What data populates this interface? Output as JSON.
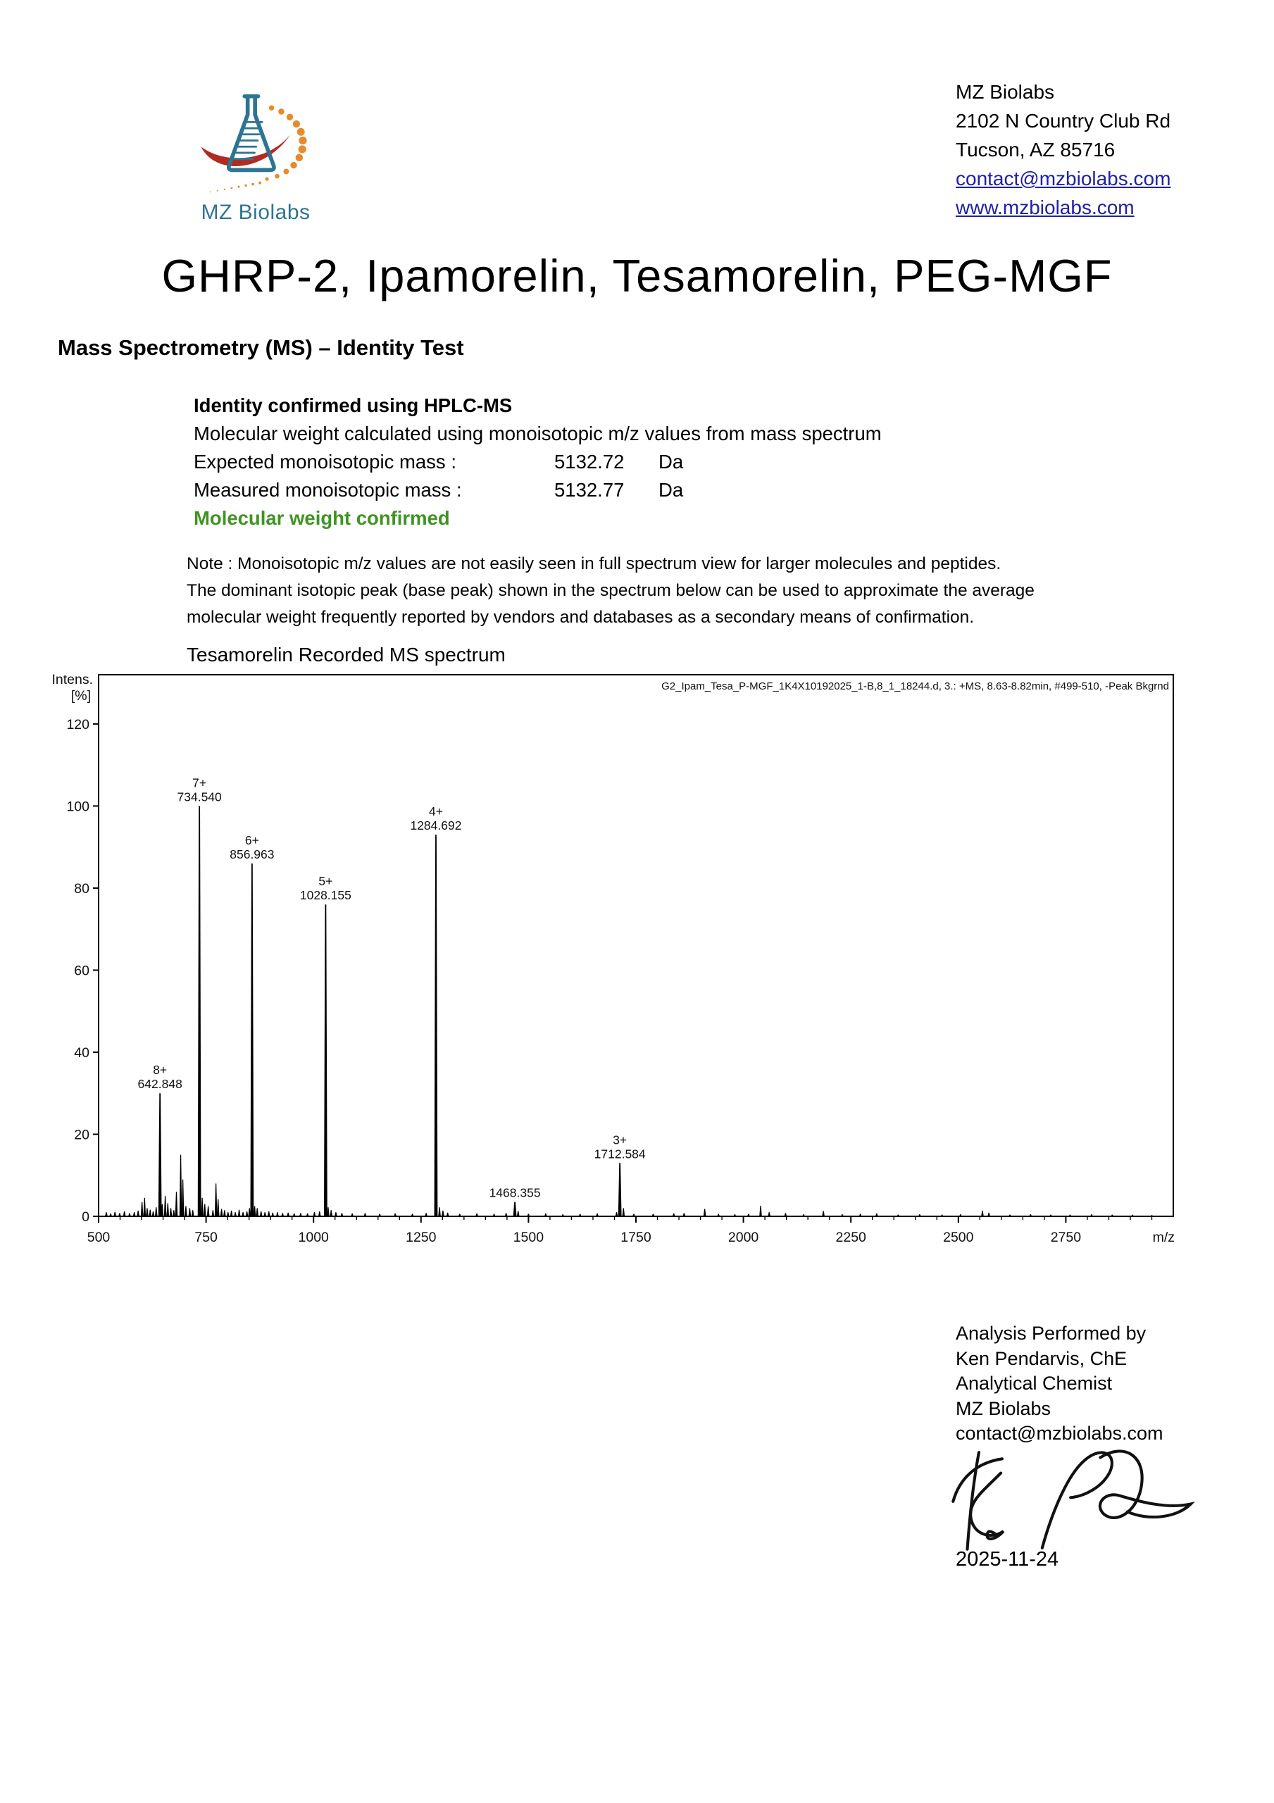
{
  "brand": {
    "logo_text": "MZ Biolabs",
    "colors": {
      "teal": "#2e7492",
      "red": "#b32a21",
      "orange": "#e78a2e",
      "link_navy": "#2020a8",
      "confirm_green": "#3f9421"
    }
  },
  "letterhead": {
    "address_lines": [
      "MZ Biolabs",
      "2102 N Country Club Rd",
      "Tucson, AZ 85716"
    ],
    "links": [
      "contact@mzbiolabs.com",
      "www.mzbiolabs.com"
    ]
  },
  "title": "GHRP-2, Ipamorelin, Tesamorelin, PEG-MGF",
  "section_heading": "Mass Spectrometry (MS) – Identity Test",
  "identity_summary": {
    "method_line": "Identity confirmed using HPLC-MS",
    "calc_line": "Molecular weight calculated using monoisotopic m/z values from mass spectrum",
    "rows": [
      {
        "label": "Expected monoisotopic mass :",
        "value": "5132.72",
        "unit": "Da"
      },
      {
        "label": "Measured monoisotopic mass :",
        "value": "5132.77",
        "unit": "Da"
      }
    ],
    "confirmation": "Molecular weight confirmed"
  },
  "note_lines": [
    "Note : Monoisotopic m/z values are not easily seen in full spectrum view for larger molecules and peptides.",
    "The dominant isotopic peak (base peak) shown in the spectrum below can be used to approximate the average",
    "molecular weight frequently reported by vendors and databases as a secondary means of confirmation."
  ],
  "spectrum_caption": "Tesamorelin Recorded MS spectrum",
  "chart_data": {
    "type": "line",
    "subtype": "mass-spectrum-sticks",
    "annotation": "G2_Ipam_Tesa_P-MGF_1K4X10192025_1-B,8_1_18244.d, 3.: +MS, 8.63-8.82min, #499-510, -Peak Bkgrnd",
    "ylabel_lines": [
      "Intens.",
      "[%]"
    ],
    "xlabel": "m/z",
    "xlim": [
      500,
      3000
    ],
    "ylim": [
      0,
      132
    ],
    "x_major_ticks": [
      500,
      750,
      1000,
      1250,
      1500,
      1750,
      2000,
      2250,
      2500,
      2750
    ],
    "x_minor_tick_step": 50,
    "y_ticks": [
      0,
      20,
      40,
      60,
      80,
      100,
      120
    ],
    "grid": false,
    "labeled_peaks": [
      {
        "mz": 642.848,
        "intensity": 30,
        "charge": "8+",
        "label": "642.848"
      },
      {
        "mz": 734.54,
        "intensity": 100,
        "charge": "7+",
        "label": "734.540"
      },
      {
        "mz": 856.963,
        "intensity": 86,
        "charge": "6+",
        "label": "856.963"
      },
      {
        "mz": 1028.155,
        "intensity": 76,
        "charge": "5+",
        "label": "1028.155"
      },
      {
        "mz": 1284.692,
        "intensity": 93,
        "charge": "4+",
        "label": "1284.692"
      },
      {
        "mz": 1468.355,
        "intensity": 3.5,
        "charge": null,
        "label": "1468.355"
      },
      {
        "mz": 1712.584,
        "intensity": 13,
        "charge": "3+",
        "label": "1712.584"
      }
    ],
    "noise_peaks": [
      [
        518,
        1
      ],
      [
        528,
        0.7
      ],
      [
        538,
        1.1
      ],
      [
        549,
        0.8
      ],
      [
        560,
        1.2
      ],
      [
        572,
        0.8
      ],
      [
        583,
        1
      ],
      [
        592,
        1.4
      ],
      [
        601,
        3.5
      ],
      [
        607,
        4.5
      ],
      [
        613,
        2
      ],
      [
        620,
        1.6
      ],
      [
        627,
        1.2
      ],
      [
        634,
        2.2
      ],
      [
        648,
        3
      ],
      [
        655,
        5
      ],
      [
        661,
        3.2
      ],
      [
        668,
        2
      ],
      [
        675,
        1.5
      ],
      [
        681,
        6
      ],
      [
        691,
        15
      ],
      [
        696,
        9
      ],
      [
        703,
        2.5
      ],
      [
        712,
        2
      ],
      [
        719,
        1.5
      ],
      [
        741,
        4.5
      ],
      [
        747,
        3
      ],
      [
        755,
        2.5
      ],
      [
        766,
        1.5
      ],
      [
        773,
        8
      ],
      [
        778,
        4.2
      ],
      [
        786,
        1.8
      ],
      [
        793,
        1.5
      ],
      [
        801,
        1
      ],
      [
        809,
        1.4
      ],
      [
        818,
        1
      ],
      [
        827,
        1.6
      ],
      [
        836,
        1
      ],
      [
        845,
        1.2
      ],
      [
        851,
        2
      ],
      [
        863,
        2.5
      ],
      [
        869,
        2
      ],
      [
        878,
        1.2
      ],
      [
        887,
        1
      ],
      [
        896,
        1.2
      ],
      [
        905,
        0.9
      ],
      [
        916,
        1
      ],
      [
        928,
        0.8
      ],
      [
        941,
        0.9
      ],
      [
        955,
        0.7
      ],
      [
        970,
        0.8
      ],
      [
        986,
        0.7
      ],
      [
        1002,
        1
      ],
      [
        1014,
        1.2
      ],
      [
        1034,
        2.2
      ],
      [
        1041,
        1.5
      ],
      [
        1052,
        1
      ],
      [
        1066,
        0.8
      ],
      [
        1090,
        0.7
      ],
      [
        1120,
        0.8
      ],
      [
        1154,
        0.6
      ],
      [
        1190,
        0.7
      ],
      [
        1230,
        0.6
      ],
      [
        1262,
        0.8
      ],
      [
        1293,
        2.2
      ],
      [
        1301,
        1.4
      ],
      [
        1312,
        0.9
      ],
      [
        1340,
        0.6
      ],
      [
        1380,
        0.7
      ],
      [
        1420,
        0.6
      ],
      [
        1448,
        0.8
      ],
      [
        1476,
        1.3
      ],
      [
        1500,
        0.6
      ],
      [
        1540,
        0.7
      ],
      [
        1580,
        0.5
      ],
      [
        1620,
        0.6
      ],
      [
        1660,
        0.7
      ],
      [
        1705,
        1
      ],
      [
        1721,
        2
      ],
      [
        1745,
        0.6
      ],
      [
        1790,
        0.6
      ],
      [
        1838,
        0.7
      ],
      [
        1862,
        0.8
      ],
      [
        1910,
        1.8
      ],
      [
        1942,
        0.6
      ],
      [
        1980,
        0.5
      ],
      [
        2012,
        0.6
      ],
      [
        2040,
        2.6
      ],
      [
        2060,
        1
      ],
      [
        2098,
        0.8
      ],
      [
        2140,
        0.5
      ],
      [
        2186,
        1.3
      ],
      [
        2230,
        0.5
      ],
      [
        2272,
        0.6
      ],
      [
        2310,
        0.7
      ],
      [
        2360,
        0.4
      ],
      [
        2410,
        0.5
      ],
      [
        2462,
        0.4
      ],
      [
        2505,
        0.5
      ],
      [
        2556,
        1.4
      ],
      [
        2571,
        0.9
      ],
      [
        2620,
        0.4
      ],
      [
        2668,
        0.5
      ],
      [
        2715,
        0.4
      ],
      [
        2760,
        0.4
      ],
      [
        2810,
        0.5
      ],
      [
        2858,
        0.4
      ],
      [
        2905,
        0.4
      ],
      [
        2950,
        0.3
      ]
    ]
  },
  "analyst_block": {
    "lines": [
      "Analysis Performed by",
      "Ken Pendarvis, ChE",
      "Analytical Chemist",
      "MZ Biolabs",
      "contact@mzbiolabs.com"
    ],
    "date": "2025-11-24"
  }
}
